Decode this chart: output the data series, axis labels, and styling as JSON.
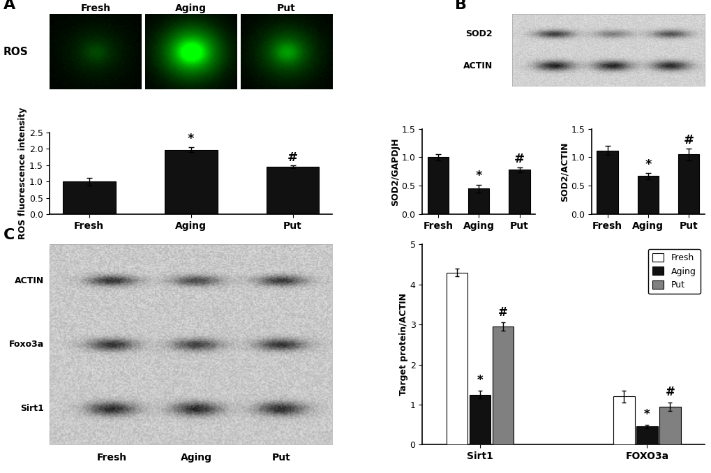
{
  "panel_labels": [
    "A",
    "B",
    "C"
  ],
  "ros_bar": {
    "categories": [
      "Fresh",
      "Aging",
      "Put"
    ],
    "values": [
      1.0,
      1.97,
      1.45
    ],
    "errors": [
      0.12,
      0.08,
      0.04
    ],
    "ylabel": "ROS fluorescence intensity",
    "ylim": [
      0,
      2.5
    ],
    "yticks": [
      0.0,
      0.5,
      1.0,
      1.5,
      2.0,
      2.5
    ],
    "annotations": [
      "",
      "*",
      "#"
    ],
    "bar_color": "#111111"
  },
  "sod2_gapdh_bar": {
    "categories": [
      "Fresh",
      "Aging",
      "Put"
    ],
    "values": [
      1.0,
      0.45,
      0.78
    ],
    "errors": [
      0.05,
      0.07,
      0.04
    ],
    "ylabel": "SOD2/GAPDJH",
    "ylim": [
      0,
      1.5
    ],
    "yticks": [
      0.0,
      0.5,
      1.0,
      1.5
    ],
    "annotations": [
      "",
      "*",
      "#"
    ],
    "bar_color": "#111111"
  },
  "sod2_actin_bar": {
    "categories": [
      "Fresh",
      "Aging",
      "Put"
    ],
    "values": [
      1.12,
      0.67,
      1.05
    ],
    "errors": [
      0.08,
      0.05,
      0.1
    ],
    "ylabel": "SOD2/ACTIN",
    "ylim": [
      0,
      1.5
    ],
    "yticks": [
      0.0,
      0.5,
      1.0,
      1.5
    ],
    "annotations": [
      "",
      "*",
      "#"
    ],
    "bar_color": "#111111"
  },
  "grouped_bar": {
    "groups": [
      "Sirt1",
      "FOXO3a"
    ],
    "categories": [
      "Fresh",
      "Aging",
      "Put"
    ],
    "values": {
      "Sirt1": [
        4.3,
        1.25,
        2.95
      ],
      "FOXO3a": [
        1.2,
        0.45,
        0.95
      ]
    },
    "errors": {
      "Sirt1": [
        0.1,
        0.1,
        0.1
      ],
      "FOXO3a": [
        0.15,
        0.05,
        0.1
      ]
    },
    "bar_colors": [
      "#ffffff",
      "#111111",
      "#808080"
    ],
    "bar_edge_colors": [
      "#000000",
      "#000000",
      "#000000"
    ],
    "ylabel": "Target protein/ACTIN",
    "ylim": [
      0,
      5
    ],
    "yticks": [
      0,
      1,
      2,
      3,
      4,
      5
    ],
    "annotations": {
      "Sirt1": [
        "",
        "*",
        "#"
      ],
      "FOXO3a": [
        "",
        "*",
        "#"
      ]
    },
    "legend_labels": [
      "Fresh",
      "Aging",
      "Put"
    ]
  },
  "img_brightnesses": [
    0.18,
    0.9,
    0.42
  ],
  "img_labels": [
    "Fresh",
    "Aging",
    "Put"
  ],
  "blot_C_labels": [
    "Sirt1",
    "Foxo3a",
    "ACTIN"
  ],
  "blot_C_col_labels": [
    "Fresh",
    "Aging",
    "Put"
  ],
  "blot_B_row_labels": [
    "SOD2",
    "ACTIN"
  ],
  "background_color": "#ffffff",
  "font_size": 9,
  "label_font_size": 16
}
